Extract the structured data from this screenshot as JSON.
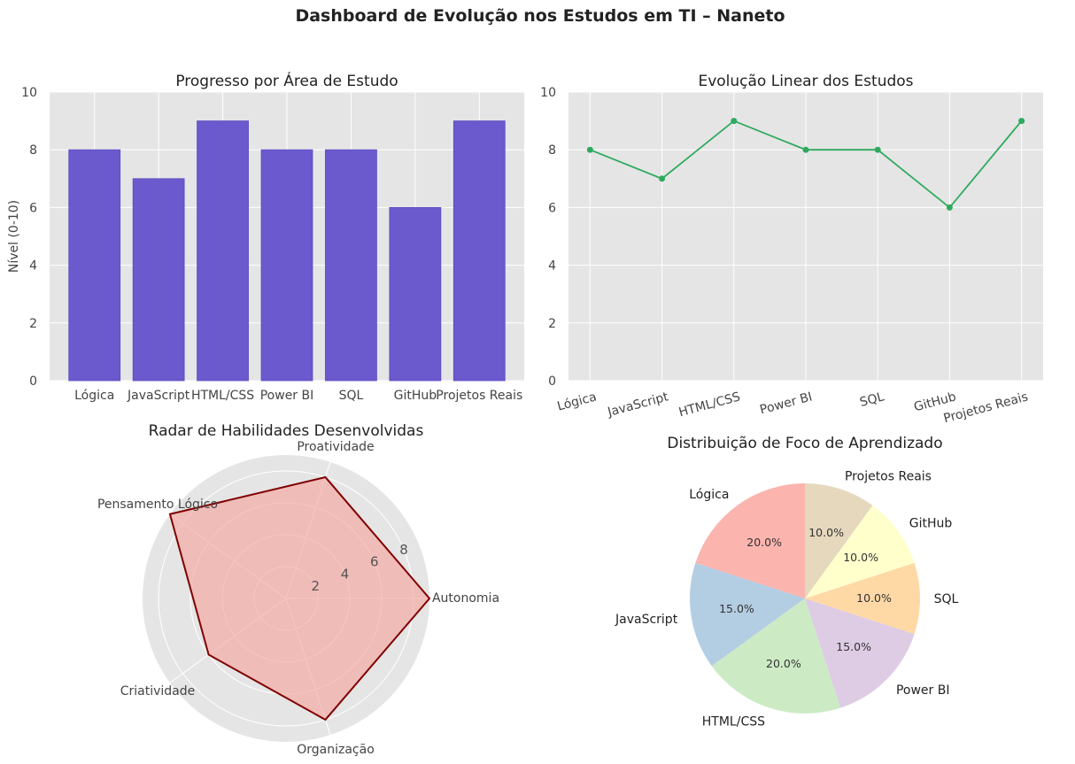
{
  "figure_title": "Dashboard de Evolução nos Estudos em TI – Naneto",
  "chart_data": [
    {
      "type": "bar",
      "title": "Progresso por Área de Estudo",
      "ylabel": "Nível (0-10)",
      "xlabel": "",
      "categories": [
        "Lógica",
        "JavaScript",
        "HTML/CSS",
        "Power BI",
        "SQL",
        "GitHub",
        "Projetos Reais"
      ],
      "values": [
        8,
        7,
        9,
        8,
        8,
        6,
        9
      ],
      "ylim": [
        0,
        10
      ],
      "yticks": [
        0,
        2,
        4,
        6,
        8,
        10
      ],
      "color": "#6a5acd",
      "grid": true
    },
    {
      "type": "line",
      "title": "Evolução Linear dos Estudos",
      "categories": [
        "Lógica",
        "JavaScript",
        "HTML/CSS",
        "Power BI",
        "SQL",
        "GitHub",
        "Projetos Reais"
      ],
      "values": [
        8,
        7,
        9,
        8,
        8,
        6,
        9
      ],
      "ylim": [
        0,
        10
      ],
      "yticks": [
        0,
        2,
        4,
        6,
        8,
        10
      ],
      "color": "#2eaa5e",
      "marker": "circle",
      "grid": true
    },
    {
      "type": "radar",
      "title": "Radar de Habilidades Desenvolvidas",
      "axes": [
        "Autonomia",
        "Proatividade",
        "Pensamento Lógico",
        "Criatividade",
        "Organização"
      ],
      "values": [
        9,
        8,
        9,
        6,
        8
      ],
      "rmax": 9,
      "rticks": [
        2,
        4,
        6,
        8
      ],
      "fill_color": "#f4a6a0",
      "line_color": "#800000"
    },
    {
      "type": "pie",
      "title": "Distribuição de Foco de Aprendizado",
      "labels": [
        "Lógica",
        "JavaScript",
        "HTML/CSS",
        "Power BI",
        "SQL",
        "GitHub",
        "Projetos Reais"
      ],
      "values": [
        20,
        15,
        20,
        15,
        10,
        10,
        10
      ],
      "percent_labels": [
        "20.0%",
        "15.0%",
        "20.0%",
        "15.0%",
        "10.0%",
        "10.0%",
        "10.0%"
      ],
      "colors": [
        "#fbb4ae",
        "#b3cde3",
        "#ccebc5",
        "#decbe4",
        "#fed9a6",
        "#ffffcc",
        "#e5d8bd"
      ],
      "start_angle_deg": 90,
      "direction": "counterclockwise"
    }
  ]
}
